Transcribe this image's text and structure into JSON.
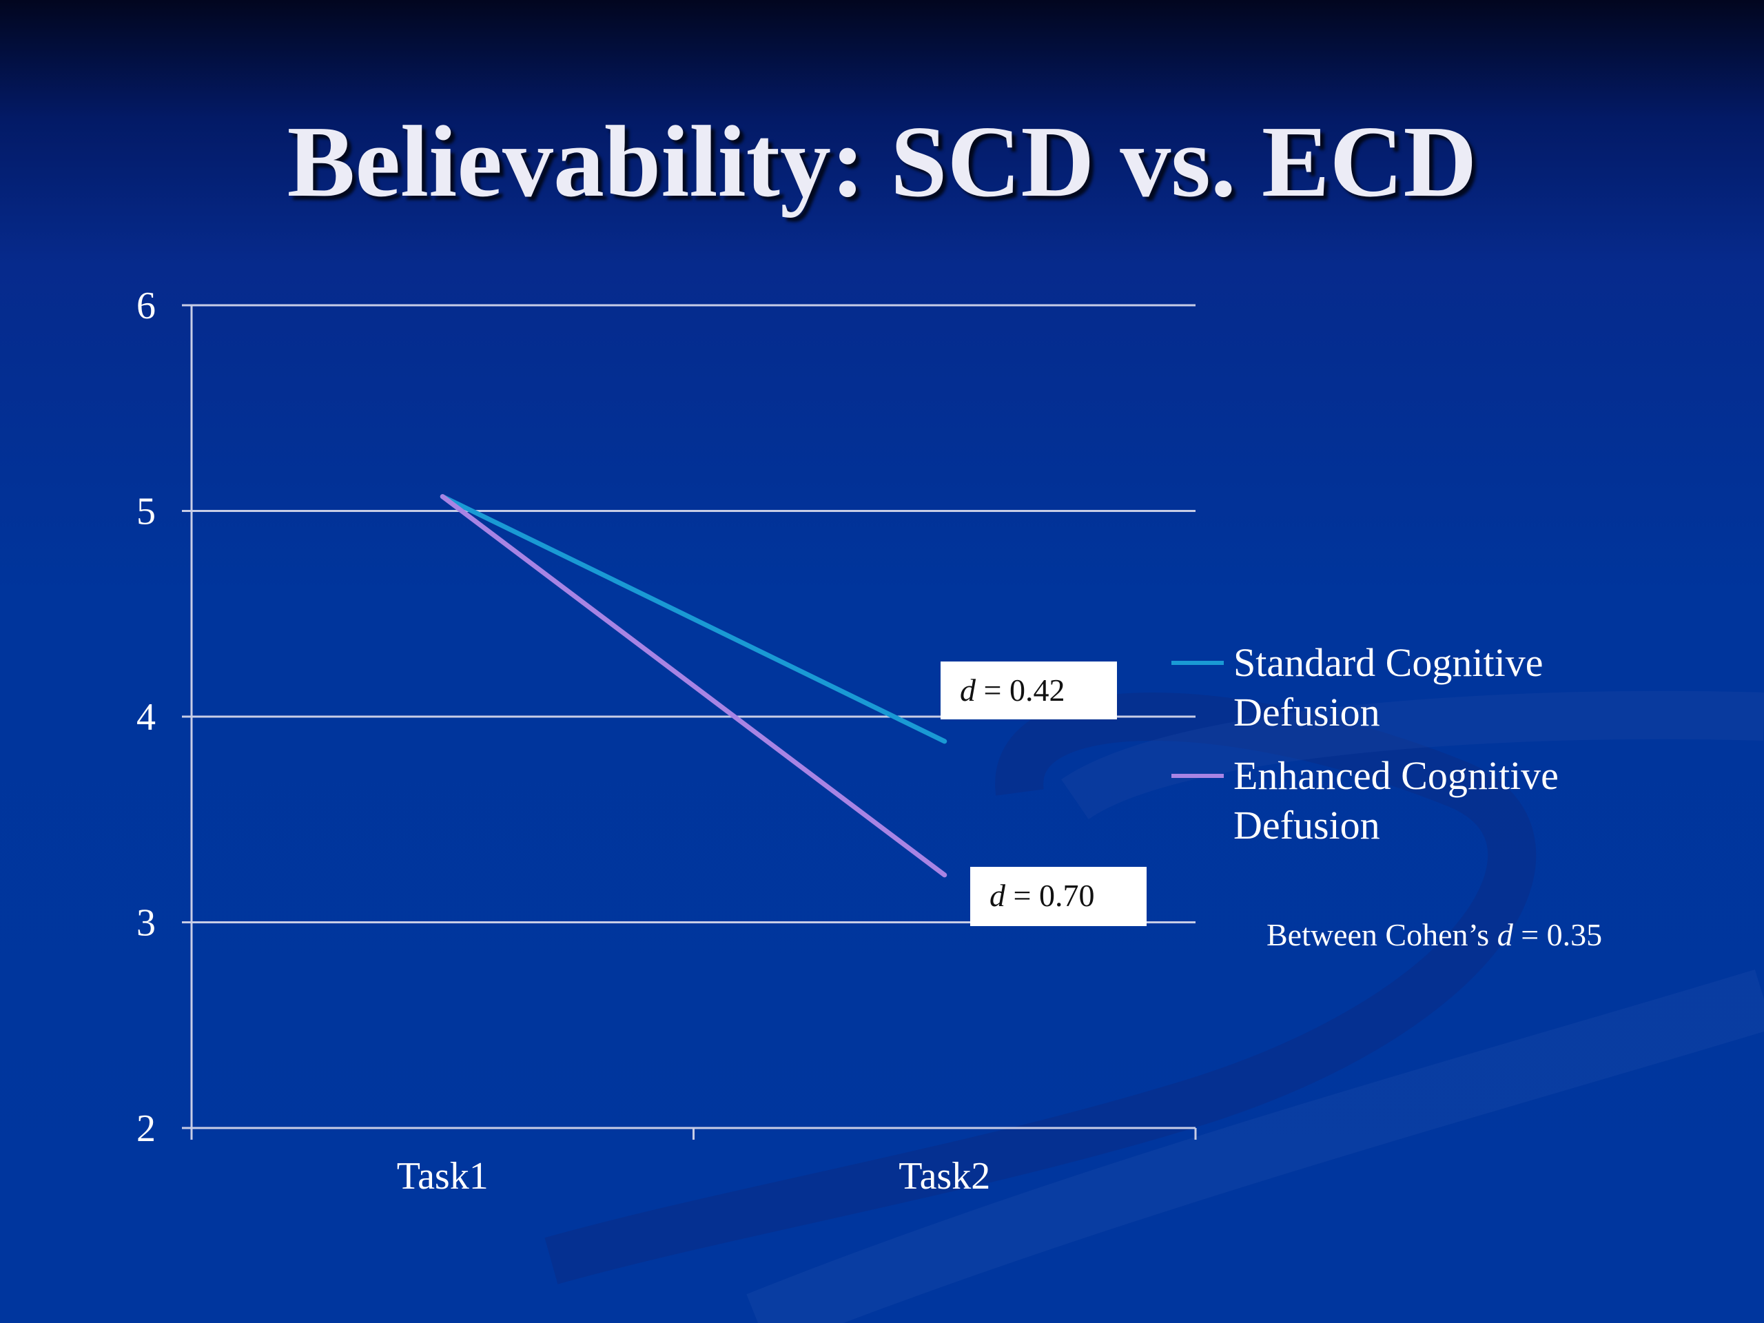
{
  "slide": {
    "title": "Believability: SCD vs. ECD"
  },
  "colors": {
    "background": "#00369e",
    "series_standard": "#1a9ad4",
    "series_enhanced": "#a884e4",
    "gridline": "#c8cde6"
  },
  "chart_data": {
    "type": "line",
    "title": "",
    "xlabel": "",
    "ylabel": "",
    "categories": [
      "Task1",
      "Task2"
    ],
    "ylim": [
      2,
      6
    ],
    "yticks": [
      2,
      3,
      4,
      5,
      6
    ],
    "grid": true,
    "legend_position": "right",
    "series": [
      {
        "name": "Standard Cognitive Defusion",
        "values": [
          5.07,
          3.88
        ],
        "color": "#1a9ad4"
      },
      {
        "name": "Enhanced Cognitive Defusion",
        "values": [
          5.07,
          3.23
        ],
        "color": "#a884e4"
      }
    ],
    "annotations": [
      {
        "prefix": "d",
        "text": " = 0.42",
        "series": "Standard Cognitive Defusion"
      },
      {
        "prefix": "d",
        "text": " = 0.70",
        "series": "Enhanced Cognitive Defusion"
      }
    ],
    "note": {
      "before": "Between Cohen’s ",
      "italic": "d",
      "after": " = 0.35"
    }
  }
}
